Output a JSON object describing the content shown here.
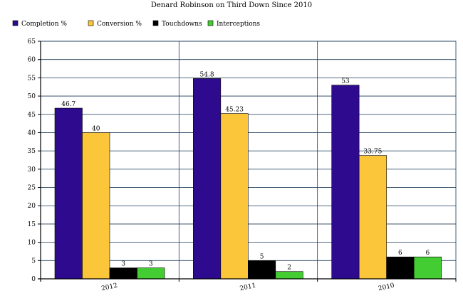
{
  "chart_data": {
    "type": "bar",
    "title": "Denard Robinson on Third Down Since 2010",
    "xlabel": "",
    "ylabel": "",
    "categories": [
      "2012",
      "2011",
      "2010"
    ],
    "series": [
      {
        "name": "Completion %",
        "color": "#2e0a8f",
        "values": [
          46.7,
          54.8,
          53
        ],
        "labels": [
          "46.7",
          "54.8",
          "53"
        ]
      },
      {
        "name": "Conversion %",
        "color": "#fcc63a",
        "values": [
          40,
          45.23,
          33.75
        ],
        "labels": [
          "40",
          "45.23",
          "33.75"
        ]
      },
      {
        "name": "Touchdowns",
        "color": "#000000",
        "values": [
          3,
          5,
          6
        ],
        "labels": [
          "3",
          "5",
          "6"
        ]
      },
      {
        "name": "Interceptions",
        "color": "#44cc33",
        "values": [
          3,
          2,
          6
        ],
        "labels": [
          "3",
          "2",
          "6"
        ]
      }
    ],
    "ylim": [
      0,
      65
    ],
    "yticks": [
      0,
      5,
      10,
      15,
      20,
      25,
      30,
      35,
      40,
      45,
      50,
      55,
      60,
      65
    ],
    "grid": true,
    "legend_position": "top-left"
  }
}
